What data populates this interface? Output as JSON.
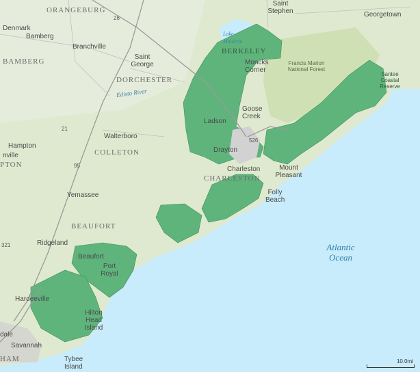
{
  "map": {
    "places": {
      "orangeburg": "ORANGEBURG",
      "saint_stephen": "Saint Stephen",
      "georgetown": "Georgetown",
      "denmark": "Denmark",
      "bamberg_city": "Bamberg",
      "branchville": "Branchville",
      "bamberg_county": "BAMBERG",
      "saint_george": "Saint George",
      "dorchester": "DORCHESTER",
      "berkeley": "BERKELEY",
      "moncks_corner": "Moncks Corner",
      "lake_moultrie": "Lake Moultrie",
      "edisto_river": "Edisto River",
      "goose_creek": "Goose Creek",
      "ladson": "Ladson",
      "walterboro": "Walterboro",
      "hampton": "Hampton",
      "hampton_county": "PTON",
      "nville": "nville",
      "colleton": "COLLETON",
      "drayton": "Drayton",
      "charleston_city": "Charleston",
      "charleston_county": "CHARLESTON",
      "mount_pleasant": "Mount Pleasant",
      "folly_beach": "Folly Beach",
      "yemassee": "Yemassee",
      "beaufort_county": "BEAUFORT",
      "ridgeland": "Ridgeland",
      "beaufort_city": "Beaufort",
      "port_royal": "Port Royal",
      "hardeeville": "Hardeeville",
      "hilton_head": "Hilton Head Island",
      "dale": "dale",
      "savannah": "Savannah",
      "ham": "HAM",
      "tybee": "Tybee Island"
    },
    "forest": "Francis Marion National Forest",
    "reserve": "Santee Coastal Reserve",
    "ocean": "Atlantic Ocean",
    "shields": {
      "i26": "26",
      "i95": "95",
      "i526": "526",
      "us21": "21",
      "us321": "321"
    },
    "scale": "10.0mi",
    "colors": {
      "land": "#dfe9cf",
      "forest": "#cfe0b4",
      "water": "#c8ecfb",
      "district": "#5fb47c",
      "urban": "#cfcfcf"
    }
  }
}
